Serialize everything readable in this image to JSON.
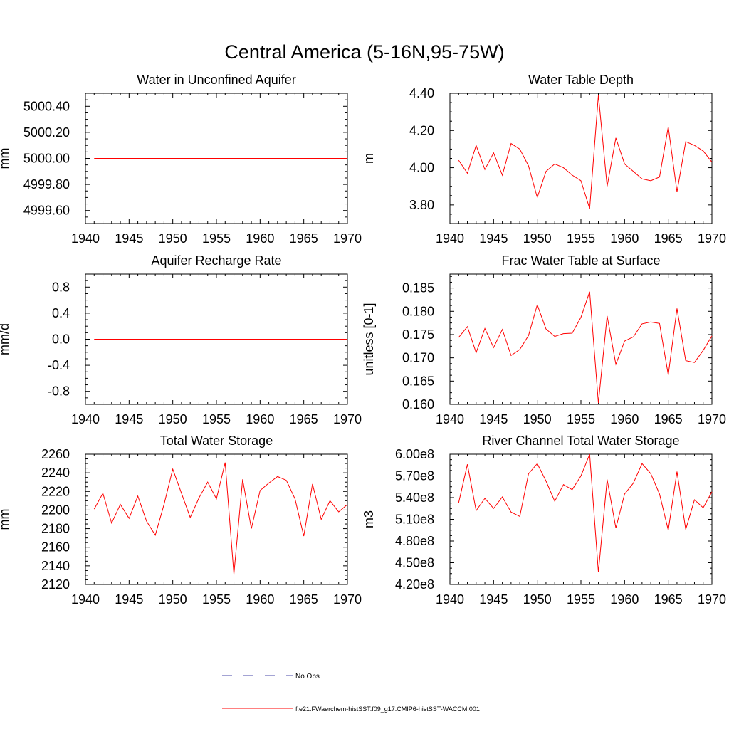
{
  "figure": {
    "title": "Central America (5-16N,95-75W)"
  },
  "colors": {
    "model": "#ff0000",
    "obs": "#4a4aa8",
    "axis": "#000000"
  },
  "legend": {
    "obs_label": "No Obs",
    "model_label": "f.e21.FWaerchem-histSST.f09_g17.CMIP6-histSST-WACCM.001"
  },
  "chart_data": [
    {
      "type": "line",
      "title": "Water in Unconfined Aquifer",
      "ylabel": "mm",
      "xlim": [
        1940,
        1970
      ],
      "ylim": [
        4999.5,
        5000.5
      ],
      "xticks": [
        1940,
        1945,
        1950,
        1955,
        1960,
        1965,
        1970
      ],
      "yticks": [
        4999.6,
        4999.8,
        5000.0,
        5000.2,
        5000.4
      ],
      "ytick_labels": [
        "4999.60",
        "4999.80",
        "5000.00",
        "5000.20",
        "5000.40"
      ],
      "x": [
        1941,
        1942,
        1943,
        1944,
        1945,
        1946,
        1947,
        1948,
        1949,
        1950,
        1951,
        1952,
        1953,
        1954,
        1955,
        1956,
        1957,
        1958,
        1959,
        1960,
        1961,
        1962,
        1963,
        1964,
        1965,
        1966,
        1967,
        1968,
        1969,
        1970
      ],
      "series": [
        {
          "values": [
            5000,
            5000,
            5000,
            5000,
            5000,
            5000,
            5000,
            5000,
            5000,
            5000,
            5000,
            5000,
            5000,
            5000,
            5000,
            5000,
            5000,
            5000,
            5000,
            5000,
            5000,
            5000,
            5000,
            5000,
            5000,
            5000,
            5000,
            5000,
            5000,
            5000
          ]
        }
      ]
    },
    {
      "type": "line",
      "title": "Water Table Depth",
      "ylabel": "m",
      "xlim": [
        1940,
        1970
      ],
      "ylim": [
        3.7,
        4.4
      ],
      "xticks": [
        1940,
        1945,
        1950,
        1955,
        1960,
        1965,
        1970
      ],
      "yticks": [
        3.8,
        4.0,
        4.2,
        4.4
      ],
      "ytick_labels": [
        "3.80",
        "4.00",
        "4.20",
        "4.40"
      ],
      "x": [
        1941,
        1942,
        1943,
        1944,
        1945,
        1946,
        1947,
        1948,
        1949,
        1950,
        1951,
        1952,
        1953,
        1954,
        1955,
        1956,
        1957,
        1958,
        1959,
        1960,
        1961,
        1962,
        1963,
        1964,
        1965,
        1966,
        1967,
        1968,
        1969,
        1970
      ],
      "series": [
        {
          "values": [
            4.04,
            3.97,
            4.12,
            3.99,
            4.08,
            3.96,
            4.13,
            4.1,
            4.01,
            3.84,
            3.98,
            4.02,
            4.0,
            3.96,
            3.93,
            3.78,
            4.39,
            3.9,
            4.16,
            4.02,
            3.98,
            3.94,
            3.93,
            3.95,
            4.22,
            3.87,
            4.14,
            4.12,
            4.09,
            4.03
          ]
        }
      ]
    },
    {
      "type": "line",
      "title": "Aquifer Recharge Rate",
      "ylabel": "mm/d",
      "xlim": [
        1940,
        1970
      ],
      "ylim": [
        -1.0,
        1.0
      ],
      "xticks": [
        1940,
        1945,
        1950,
        1955,
        1960,
        1965,
        1970
      ],
      "yticks": [
        -0.8,
        -0.4,
        0.0,
        0.4,
        0.8
      ],
      "ytick_labels": [
        "-0.8",
        "-0.4",
        "0.0",
        "0.4",
        "0.8"
      ],
      "x": [
        1941,
        1942,
        1943,
        1944,
        1945,
        1946,
        1947,
        1948,
        1949,
        1950,
        1951,
        1952,
        1953,
        1954,
        1955,
        1956,
        1957,
        1958,
        1959,
        1960,
        1961,
        1962,
        1963,
        1964,
        1965,
        1966,
        1967,
        1968,
        1969,
        1970
      ],
      "series": [
        {
          "values": [
            0,
            0,
            0,
            0,
            0,
            0,
            0,
            0,
            0,
            0,
            0,
            0,
            0,
            0,
            0,
            0,
            0,
            0,
            0,
            0,
            0,
            0,
            0,
            0,
            0,
            0,
            0,
            0,
            0,
            0
          ]
        }
      ]
    },
    {
      "type": "line",
      "title": "Frac Water Table at Surface",
      "ylabel": "unitless [0-1]",
      "xlim": [
        1940,
        1970
      ],
      "ylim": [
        0.16,
        0.188
      ],
      "xticks": [
        1940,
        1945,
        1950,
        1955,
        1960,
        1965,
        1970
      ],
      "yticks": [
        0.16,
        0.165,
        0.17,
        0.175,
        0.18,
        0.185
      ],
      "ytick_labels": [
        "0.160",
        "0.165",
        "0.170",
        "0.175",
        "0.180",
        "0.185"
      ],
      "x": [
        1941,
        1942,
        1943,
        1944,
        1945,
        1946,
        1947,
        1948,
        1949,
        1950,
        1951,
        1952,
        1953,
        1954,
        1955,
        1956,
        1957,
        1958,
        1959,
        1960,
        1961,
        1962,
        1963,
        1964,
        1965,
        1966,
        1967,
        1968,
        1969,
        1970
      ],
      "series": [
        {
          "values": [
            0.1744,
            0.1767,
            0.1711,
            0.1763,
            0.1722,
            0.1761,
            0.1705,
            0.1718,
            0.1748,
            0.1814,
            0.1762,
            0.1746,
            0.1752,
            0.1753,
            0.1787,
            0.1842,
            0.1603,
            0.179,
            0.1686,
            0.1736,
            0.1745,
            0.1773,
            0.1777,
            0.1774,
            0.1663,
            0.1806,
            0.1694,
            0.169,
            0.1716,
            0.1747
          ]
        }
      ]
    },
    {
      "type": "line",
      "title": "Total Water Storage",
      "ylabel": "mm",
      "xlim": [
        1940,
        1970
      ],
      "ylim": [
        2120,
        2260
      ],
      "xticks": [
        1940,
        1945,
        1950,
        1955,
        1960,
        1965,
        1970
      ],
      "yticks": [
        2120,
        2140,
        2160,
        2180,
        2200,
        2220,
        2240,
        2260
      ],
      "ytick_labels": [
        "2120",
        "2140",
        "2160",
        "2180",
        "2200",
        "2220",
        "2240",
        "2260"
      ],
      "x": [
        1941,
        1942,
        1943,
        1944,
        1945,
        1946,
        1947,
        1948,
        1949,
        1950,
        1951,
        1952,
        1953,
        1954,
        1955,
        1956,
        1957,
        1958,
        1959,
        1960,
        1961,
        1962,
        1963,
        1964,
        1965,
        1966,
        1967,
        1968,
        1969,
        1970
      ],
      "series": [
        {
          "values": [
            2201,
            2218,
            2186,
            2206,
            2191,
            2215,
            2188,
            2173,
            2206,
            2244,
            2218,
            2192,
            2213,
            2230,
            2212,
            2251,
            2131,
            2233,
            2180,
            2221,
            2229,
            2236,
            2232,
            2212,
            2172,
            2228,
            2190,
            2210,
            2198,
            2206
          ]
        }
      ]
    },
    {
      "type": "line",
      "title": "River Channel Total Water Storage",
      "ylabel": "m3",
      "xlim": [
        1940,
        1970
      ],
      "ylim": [
        420000000,
        600000000
      ],
      "xticks": [
        1940,
        1945,
        1950,
        1955,
        1960,
        1965,
        1970
      ],
      "yticks": [
        420000000,
        450000000,
        480000000,
        510000000,
        540000000,
        570000000,
        600000000
      ],
      "ytick_labels": [
        "4.20e8",
        "4.50e8",
        "4.80e8",
        "5.10e8",
        "5.40e8",
        "5.70e8",
        "6.00e8"
      ],
      "x": [
        1941,
        1942,
        1943,
        1944,
        1945,
        1946,
        1947,
        1948,
        1949,
        1950,
        1951,
        1952,
        1953,
        1954,
        1955,
        1956,
        1957,
        1958,
        1959,
        1960,
        1961,
        1962,
        1963,
        1964,
        1965,
        1966,
        1967,
        1968,
        1969,
        1970
      ],
      "series": [
        {
          "values": [
            533000000,
            586000000,
            522000000,
            539000000,
            525000000,
            541000000,
            520000000,
            514000000,
            573000000,
            587000000,
            563000000,
            535000000,
            558000000,
            551000000,
            570000000,
            600000000,
            437000000,
            565000000,
            498000000,
            545000000,
            560000000,
            587000000,
            573000000,
            545000000,
            495000000,
            576000000,
            496000000,
            537000000,
            526000000,
            548000000
          ]
        }
      ]
    }
  ]
}
